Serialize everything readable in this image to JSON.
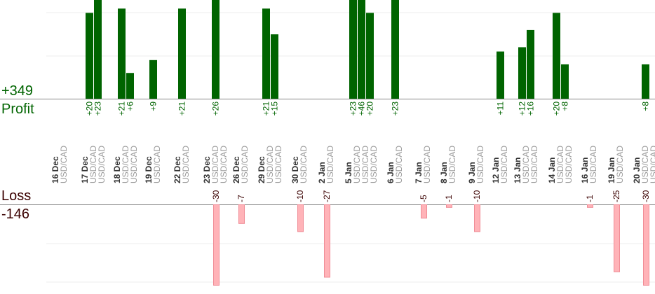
{
  "summary": {
    "profit_total": "+349",
    "profit_label": "Profit",
    "loss_label": "Loss",
    "loss_total": "-146"
  },
  "colors": {
    "profit_bar": "#006400",
    "loss_bar": "#ffb3b8",
    "loss_bar_stroke": "#f08c96",
    "profit_text": "#006400",
    "loss_text": "#3a0000",
    "date_text": "#333333",
    "pair_text": "#999999",
    "grid": "#eeeeee",
    "axis": "#888888"
  },
  "chart_data": {
    "type": "bar",
    "title": "",
    "xlabel": "",
    "ylabel": "",
    "grid": true,
    "profit_ylim": [
      0,
      23
    ],
    "loss_ylim": [
      -30,
      0
    ],
    "days": [
      {
        "date": "16 Dec",
        "pairs": [
          "USD/CAD"
        ]
      },
      {
        "date": "17 Dec",
        "pairs": [
          "USD/CAD",
          "USD/CAD"
        ]
      },
      {
        "date": "18 Dec",
        "pairs": [
          "USD/CAD",
          "USD/CAD"
        ]
      },
      {
        "date": "19 Dec",
        "pairs": [
          "USD/CAD"
        ]
      },
      {
        "date": "22 Dec",
        "pairs": [
          "USD/CAD"
        ]
      },
      {
        "date": "23 Dec",
        "pairs": [
          "USD/CAD",
          "USD/CAD"
        ]
      },
      {
        "date": "26 Dec",
        "pairs": [
          "USD/CAD"
        ]
      },
      {
        "date": "29 Dec",
        "pairs": [
          "USD/CAD",
          "USD/CAD"
        ]
      },
      {
        "date": "30 Dec",
        "pairs": [
          "USD/CAD"
        ]
      },
      {
        "date": "2 Jan",
        "pairs": [
          "USD/CAD"
        ]
      },
      {
        "date": "5 Jan",
        "pairs": [
          "USD/CAD",
          "USD/CAD",
          "USD/CAD"
        ]
      },
      {
        "date": "6 Jan",
        "pairs": [
          "USD/CAD"
        ]
      },
      {
        "date": "7 Jan",
        "pairs": [
          "USD/CAD"
        ]
      },
      {
        "date": "8 Jan",
        "pairs": [
          "USD/CAD"
        ]
      },
      {
        "date": "9 Jan",
        "pairs": [
          "USD/CAD"
        ]
      },
      {
        "date": "12 Jan",
        "pairs": [
          "USD/CAD"
        ]
      },
      {
        "date": "13 Jan",
        "pairs": [
          "USD/CAD",
          "USD/CAD"
        ]
      },
      {
        "date": "14 Jan",
        "pairs": [
          "USD/CAD",
          "USD/CAD"
        ]
      },
      {
        "date": "16 Jan",
        "pairs": [
          "USD/CAD"
        ]
      },
      {
        "date": "19 Jan",
        "pairs": [
          "USD/CAD"
        ]
      },
      {
        "date": "20 Jan",
        "pairs": [
          "USD/CAD",
          "USD/CAD"
        ]
      }
    ],
    "profit_bars": [
      {
        "day": "17 Dec",
        "value": 20,
        "label": "+20"
      },
      {
        "day": "17 Dec",
        "value": 23,
        "label": "+23"
      },
      {
        "day": "18 Dec",
        "value": 21,
        "label": "+21"
      },
      {
        "day": "18 Dec",
        "value": 6,
        "label": "+6"
      },
      {
        "day": "19 Dec",
        "value": 9,
        "label": "+9"
      },
      {
        "day": "22 Dec",
        "value": 21,
        "label": "+21"
      },
      {
        "day": "23 Dec",
        "value": 26,
        "label": "+26"
      },
      {
        "day": "29 Dec",
        "value": 21,
        "label": "+21"
      },
      {
        "day": "29 Dec",
        "value": 15,
        "label": "+15"
      },
      {
        "day": "5 Jan",
        "value": 23,
        "label": "+23"
      },
      {
        "day": "5 Jan",
        "value": 46,
        "label": "+46"
      },
      {
        "day": "5 Jan",
        "value": 20,
        "label": "+20"
      },
      {
        "day": "6 Jan",
        "value": 23,
        "label": "+23"
      },
      {
        "day": "12 Jan",
        "value": 11,
        "label": "+11"
      },
      {
        "day": "13 Jan",
        "value": 12,
        "label": "+12"
      },
      {
        "day": "13 Jan",
        "value": 16,
        "label": "+16"
      },
      {
        "day": "14 Jan",
        "value": 20,
        "label": "+20"
      },
      {
        "day": "14 Jan",
        "value": 8,
        "label": "+8"
      },
      {
        "day": "20 Jan",
        "value": 8,
        "label": "+8"
      }
    ],
    "loss_bars": [
      {
        "day": "23 Dec",
        "value": -30,
        "label": "-30"
      },
      {
        "day": "26 Dec",
        "value": -7,
        "label": "-7"
      },
      {
        "day": "30 Dec",
        "value": -10,
        "label": "-10"
      },
      {
        "day": "2 Jan",
        "value": -27,
        "label": "-27"
      },
      {
        "day": "7 Jan",
        "value": -5,
        "label": "-5"
      },
      {
        "day": "8 Jan",
        "value": -1,
        "label": "-1"
      },
      {
        "day": "9 Jan",
        "value": -10,
        "label": "-10"
      },
      {
        "day": "16 Jan",
        "value": -1,
        "label": "-1"
      },
      {
        "day": "19 Jan",
        "value": -25,
        "label": "-25"
      },
      {
        "day": "20 Jan",
        "value": -30,
        "label": "-30"
      }
    ]
  }
}
